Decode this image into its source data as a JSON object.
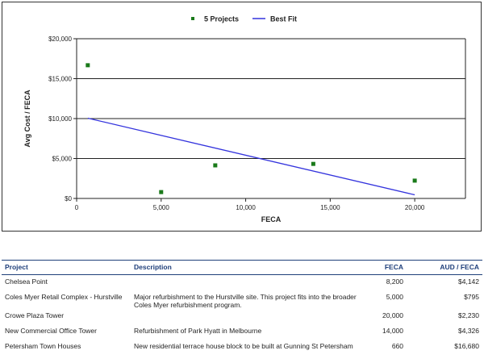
{
  "colors": {
    "point": "#1a7a1a",
    "fit_line": "#3333dd",
    "table_header": "#1f3f7a"
  },
  "chart_data": {
    "type": "scatter",
    "title": "",
    "xlabel": "FECA",
    "ylabel": "Avg Cost / FECA",
    "xlim": [
      0,
      23000
    ],
    "ylim": [
      0,
      20000
    ],
    "x_ticks": [
      0,
      5000,
      10000,
      15000,
      20000
    ],
    "x_tick_labels": [
      "0",
      "5,000",
      "10,000",
      "15,000",
      "20,000"
    ],
    "y_ticks": [
      0,
      5000,
      10000,
      15000,
      20000
    ],
    "y_tick_labels": [
      "$0",
      "$5,000",
      "$10,000",
      "$15,000",
      "$20,000"
    ],
    "grid": "horizontal",
    "legend_position": "top",
    "series": [
      {
        "name": "5 Projects",
        "kind": "scatter",
        "points": [
          {
            "x": 660,
            "y": 16680
          },
          {
            "x": 5000,
            "y": 795
          },
          {
            "x": 8200,
            "y": 4142
          },
          {
            "x": 14000,
            "y": 4326
          },
          {
            "x": 20000,
            "y": 2230
          }
        ]
      },
      {
        "name": "Best Fit",
        "kind": "line",
        "points": [
          {
            "x": 660,
            "y": 10050
          },
          {
            "x": 20000,
            "y": 450
          }
        ]
      }
    ]
  },
  "table": {
    "headers": [
      "Project",
      "Description",
      "FECA",
      "AUD / FECA"
    ],
    "rows": [
      {
        "project": "Chelsea Point",
        "description": "",
        "feca": "8,200",
        "aud": "$4,142"
      },
      {
        "project": "Coles Myer Retail Complex - Hurstville",
        "description": "Major refurbishment to the Hurstville site. This project fits into the broader Coles Myer refurbishment program.",
        "feca": "5,000",
        "aud": "$795"
      },
      {
        "project": "Crowe Plaza Tower",
        "description": "",
        "feca": "20,000",
        "aud": "$2,230"
      },
      {
        "project": "New Commercial Office Tower",
        "description": "Refurbishment of Park Hyatt in Melbourne",
        "feca": "14,000",
        "aud": "$4,326"
      },
      {
        "project": "Petersham Town Houses",
        "description": "New residential terrace house block to be built at Gunning St Petersham",
        "feca": "660",
        "aud": "$16,680"
      }
    ]
  }
}
